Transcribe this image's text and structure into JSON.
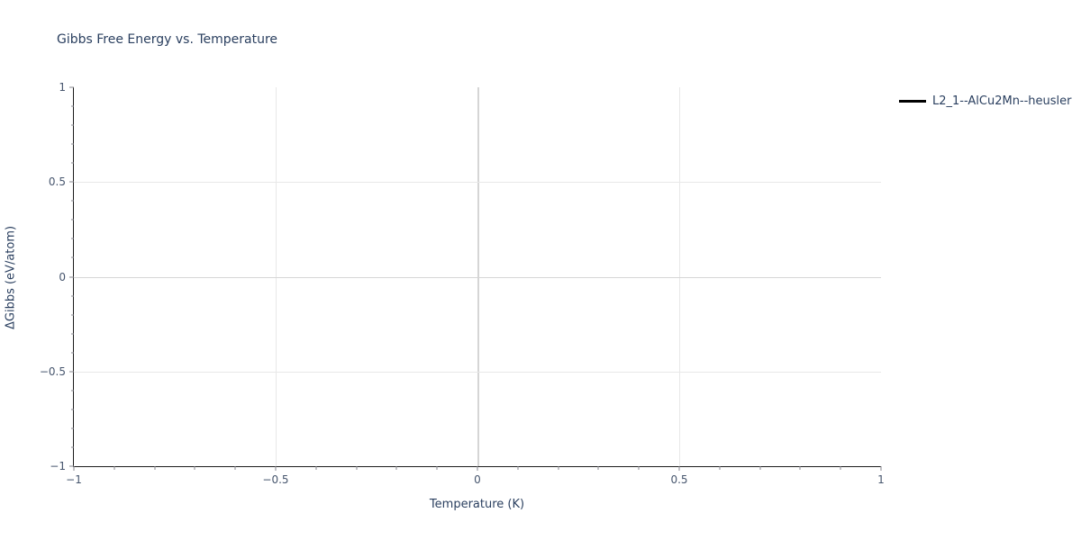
{
  "chart": {
    "title": "Gibbs Free Energy vs. Temperature",
    "xaxis": {
      "label": "Temperature (K)",
      "min": -1,
      "max": 1,
      "major_ticks": [
        -1,
        -0.5,
        0,
        0.5,
        1
      ],
      "tick_labels": [
        "−1",
        "−0.5",
        "0",
        "0.5",
        "1"
      ],
      "minor_step": 0.1,
      "gridlines": [
        -0.5,
        0,
        0.5
      ],
      "zero_line": 0
    },
    "yaxis": {
      "label": "ΔGibbs (eV/atom)",
      "min": -1,
      "max": 1,
      "major_ticks": [
        -1,
        -0.5,
        0,
        0.5,
        1
      ],
      "tick_labels": [
        "−1",
        "−0.5",
        "0",
        "0.5",
        "1"
      ],
      "minor_step": 0.1,
      "gridlines": [
        -0.5,
        0,
        0.5
      ],
      "zero_line": 0
    },
    "legend": {
      "items": [
        {
          "label": "L2_1--AlCu2Mn--heusler",
          "line_color": "#000000"
        }
      ]
    }
  },
  "chart_data": {
    "type": "line",
    "title": "Gibbs Free Energy vs. Temperature",
    "xlabel": "Temperature (K)",
    "ylabel": "ΔGibbs (eV/atom)",
    "xlim": [
      -1,
      1
    ],
    "ylim": [
      -1,
      1
    ],
    "grid": true,
    "minor_ticks": true,
    "legend_position": "outside-top-right",
    "series": [
      {
        "name": "L2_1--AlCu2Mn--heusler",
        "color": "#000000",
        "x": [],
        "y": [],
        "note": "legend entry present but no curve/points visible inside the plotted axis range"
      }
    ]
  },
  "colors": {
    "bg": "#ffffff",
    "text": "#2a3f5f",
    "ticktext": "#47566e",
    "axis": "#1c1c1c",
    "tick": "#85858c",
    "grid": "#e8e8e8",
    "zerogrid": "#d5d5d5",
    "series": "#000000"
  }
}
